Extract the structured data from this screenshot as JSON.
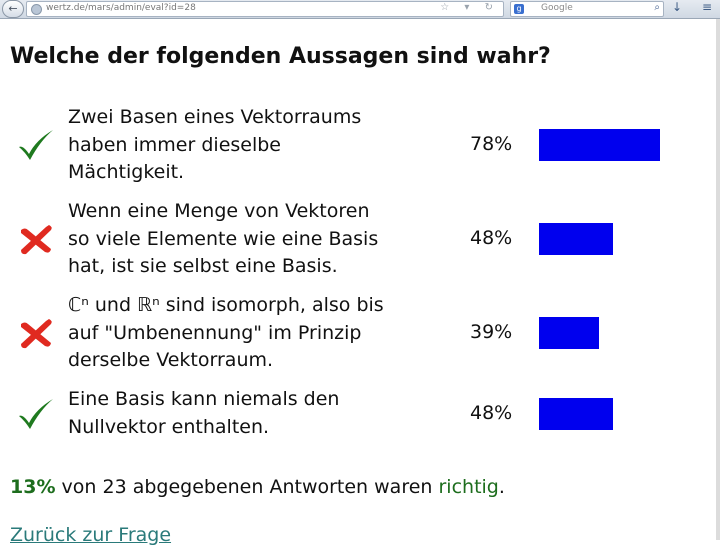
{
  "browser": {
    "back_symbol": "←",
    "url": "wertz.de/mars/admin/eval?id=28",
    "url_icons": "☆ ▾ ↻",
    "search_engine_symbol": "g",
    "search_placeholder": "Google",
    "search_symbol": "⌕",
    "download_symbol": "↓",
    "menu_symbol": "≡"
  },
  "question": {
    "title": "Welche der folgenden Aussagen sind wahr?"
  },
  "answers": [
    {
      "correct": true,
      "lines": [
        "Zwei Basen eines Vektorraums",
        "haben immer dieselbe",
        "Mächtigkeit."
      ],
      "percent_label": "78%",
      "value": 0.78
    },
    {
      "correct": false,
      "lines": [
        "Wenn eine Menge von Vektoren",
        "so viele Elemente wie eine Basis",
        "hat, ist sie selbst eine Basis."
      ],
      "percent_label": "48%",
      "value": 0.48
    },
    {
      "correct": false,
      "lines": [
        "ℂⁿ und ℝⁿ sind isomorph, also bis",
        "auf \"Umbenennung\" im Prinzip",
        "derselbe Vektorraum."
      ],
      "percent_label": "39%",
      "value": 0.39
    },
    {
      "correct": true,
      "lines": [
        "Eine Basis kann niemals den",
        "Nullvektor enthalten."
      ],
      "percent_label": "48%",
      "value": 0.48
    }
  ],
  "summary": {
    "percent": "13%",
    "middle": " von 23 abgegebenen Antworten waren ",
    "correct_word": "richtig",
    "end": "."
  },
  "back_link": {
    "label": "Zurück zur Frage"
  },
  "colors": {
    "bar": "#0000ee",
    "check": "#1f7a1f",
    "cross": "#e02a20"
  }
}
